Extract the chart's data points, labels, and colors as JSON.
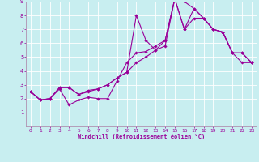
{
  "xlabel": "Windchill (Refroidissement éolien,°C)",
  "bg_color": "#c8eef0",
  "grid_color": "#c8b4d4",
  "line_color": "#990099",
  "xlim": [
    -0.5,
    23.5
  ],
  "ylim": [
    0,
    9
  ],
  "xticks": [
    0,
    1,
    2,
    3,
    4,
    5,
    6,
    7,
    8,
    9,
    10,
    11,
    12,
    13,
    14,
    15,
    16,
    17,
    18,
    19,
    20,
    21,
    22,
    23
  ],
  "yticks": [
    1,
    2,
    3,
    4,
    5,
    6,
    7,
    8,
    9
  ],
  "line1_x": [
    0,
    1,
    2,
    3,
    4,
    5,
    6,
    7,
    8,
    9,
    10,
    11,
    12,
    13,
    14,
    15,
    16,
    17,
    18,
    19,
    20,
    21,
    22,
    23
  ],
  "line1_y": [
    2.5,
    1.9,
    2.0,
    2.7,
    1.55,
    1.9,
    2.1,
    2.0,
    2.0,
    3.3,
    4.6,
    5.3,
    5.4,
    5.8,
    6.2,
    9.2,
    9.0,
    8.5,
    7.8,
    7.0,
    6.8,
    5.3,
    4.6,
    4.6
  ],
  "line2_x": [
    0,
    1,
    2,
    3,
    4,
    5,
    6,
    7,
    8,
    9,
    10,
    11,
    12,
    13,
    14,
    15,
    16,
    17,
    18,
    19,
    20,
    21,
    22,
    23
  ],
  "line2_y": [
    2.5,
    1.9,
    2.0,
    2.8,
    2.8,
    2.3,
    2.5,
    2.7,
    3.0,
    3.5,
    3.9,
    4.6,
    5.0,
    5.5,
    5.8,
    9.2,
    7.0,
    7.8,
    7.8,
    7.0,
    6.8,
    5.3,
    5.3,
    4.6
  ],
  "line3_x": [
    0,
    1,
    2,
    3,
    4,
    5,
    6,
    7,
    8,
    9,
    10,
    11,
    12,
    13,
    14,
    15,
    16,
    17,
    18,
    19,
    20,
    21,
    22,
    23
  ],
  "line3_y": [
    2.5,
    1.9,
    2.0,
    2.8,
    2.8,
    2.3,
    2.6,
    2.7,
    3.0,
    3.5,
    3.9,
    8.0,
    6.2,
    5.5,
    6.2,
    9.2,
    7.0,
    8.5,
    7.8,
    7.0,
    6.8,
    5.3,
    5.3,
    4.6
  ]
}
